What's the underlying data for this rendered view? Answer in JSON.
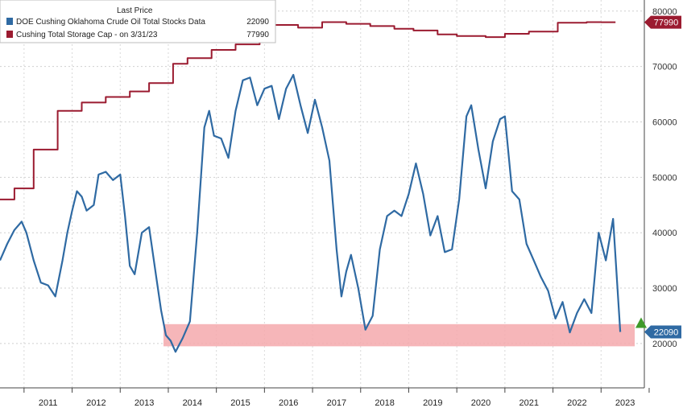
{
  "chart_data": {
    "type": "line",
    "legend": {
      "header": "Last Price",
      "position": "top-left",
      "entries": [
        {
          "label": "DOE Cushing Oklahoma Crude Oil Total Stocks Data",
          "value": "22090",
          "color": "#2f6aa3"
        },
        {
          "label": "Cushing Total Storage Cap -  on 3/31/23",
          "value": "77990",
          "color": "#9b1b30"
        }
      ]
    },
    "x_ticks": [
      "2011",
      "2012",
      "2013",
      "2014",
      "2015",
      "2016",
      "2017",
      "2018",
      "2019",
      "2020",
      "2021",
      "2022",
      "2023"
    ],
    "y_ticks": [
      "20000",
      "30000",
      "40000",
      "50000",
      "60000",
      "70000",
      "80000"
    ],
    "ylim": [
      12000,
      82000
    ],
    "xlim": [
      2010.5,
      2023.9
    ],
    "grid": true,
    "highlight_band": {
      "y_range": [
        19500,
        23500
      ],
      "x_range": [
        2013.9,
        2023.7
      ],
      "color": "#f4a9ad"
    },
    "last_value_markers": [
      {
        "series": "storage",
        "label": "77990",
        "color": "#9b1b30"
      },
      {
        "series": "stocks",
        "label": "22090",
        "color": "#2f6aa3"
      }
    ],
    "series": [
      {
        "name": "DOE Cushing Oklahoma Crude Oil Total Stocks Data",
        "color": "#2f6aa3",
        "x": [
          2010.5,
          2010.65,
          2010.8,
          2010.95,
          2011.05,
          2011.2,
          2011.35,
          2011.5,
          2011.65,
          2011.8,
          2011.9,
          2012.0,
          2012.1,
          2012.2,
          2012.3,
          2012.45,
          2012.55,
          2012.7,
          2012.85,
          2013.0,
          2013.1,
          2013.2,
          2013.3,
          2013.45,
          2013.6,
          2013.75,
          2013.85,
          2013.95,
          2014.05,
          2014.15,
          2014.3,
          2014.45,
          2014.6,
          2014.75,
          2014.85,
          2014.95,
          2015.1,
          2015.25,
          2015.4,
          2015.55,
          2015.7,
          2015.85,
          2016.0,
          2016.15,
          2016.3,
          2016.45,
          2016.6,
          2016.75,
          2016.9,
          2017.05,
          2017.2,
          2017.35,
          2017.5,
          2017.6,
          2017.7,
          2017.8,
          2017.95,
          2018.1,
          2018.25,
          2018.4,
          2018.55,
          2018.7,
          2018.85,
          2019.0,
          2019.15,
          2019.3,
          2019.45,
          2019.6,
          2019.75,
          2019.9,
          2020.05,
          2020.2,
          2020.3,
          2020.45,
          2020.6,
          2020.75,
          2020.9,
          2021.0,
          2021.15,
          2021.3,
          2021.45,
          2021.6,
          2021.75,
          2021.9,
          2022.05,
          2022.2,
          2022.35,
          2022.5,
          2022.65,
          2022.8,
          2022.95,
          2023.1,
          2023.25,
          2023.4
        ],
        "values": [
          35000,
          38000,
          40500,
          42000,
          40000,
          35000,
          31000,
          30500,
          28500,
          35000,
          40000,
          44000,
          47500,
          46500,
          44000,
          45000,
          50500,
          51000,
          49500,
          50500,
          43000,
          34000,
          32500,
          40000,
          41000,
          32000,
          26000,
          21500,
          20500,
          18500,
          21000,
          24000,
          40000,
          59000,
          62000,
          57500,
          57000,
          53500,
          62000,
          67500,
          68000,
          63000,
          66000,
          66500,
          60500,
          66000,
          68500,
          63000,
          58000,
          64000,
          59000,
          53000,
          37000,
          28500,
          33000,
          36000,
          30000,
          22500,
          25000,
          37000,
          43000,
          44000,
          43000,
          47000,
          52500,
          47000,
          39500,
          43000,
          36500,
          37000,
          46000,
          61000,
          63000,
          55000,
          48000,
          56500,
          60500,
          61000,
          47500,
          46000,
          38000,
          35000,
          32000,
          29500,
          24500,
          27500,
          22000,
          25500,
          28000,
          25500,
          40000,
          35000,
          42500,
          22090
        ]
      },
      {
        "name": "Cushing Total Storage Cap -  on 3/31/23",
        "color": "#9b1b30",
        "x": [
          2010.5,
          2010.8,
          2010.8,
          2011.2,
          2011.2,
          2011.7,
          2011.7,
          2012.2,
          2012.2,
          2012.7,
          2012.7,
          2013.2,
          2013.2,
          2013.6,
          2013.6,
          2014.1,
          2014.1,
          2014.4,
          2014.4,
          2014.9,
          2014.9,
          2015.4,
          2015.4,
          2015.9,
          2015.9,
          2016.2,
          2016.2,
          2016.7,
          2016.7,
          2017.2,
          2017.2,
          2017.7,
          2017.7,
          2018.2,
          2018.2,
          2018.7,
          2018.7,
          2019.1,
          2019.1,
          2019.6,
          2019.6,
          2020.0,
          2020.0,
          2020.6,
          2020.6,
          2021.0,
          2021.0,
          2021.5,
          2021.5,
          2022.1,
          2022.1,
          2022.7,
          2022.7,
          2023.0,
          2023.0,
          2023.3
        ],
        "values": [
          46000,
          46000,
          48000,
          48000,
          55000,
          55000,
          62000,
          62000,
          63500,
          63500,
          64500,
          64500,
          65500,
          65500,
          67000,
          67000,
          70500,
          70500,
          71500,
          71500,
          73000,
          73000,
          74000,
          74000,
          75500,
          75500,
          77500,
          77500,
          77000,
          77000,
          78000,
          78000,
          77700,
          77700,
          77300,
          77300,
          76800,
          76800,
          76500,
          76500,
          75800,
          75800,
          75500,
          75500,
          75300,
          75300,
          75900,
          75900,
          76300,
          76300,
          77900,
          77900,
          78000,
          78000,
          77990,
          77990
        ]
      }
    ]
  }
}
